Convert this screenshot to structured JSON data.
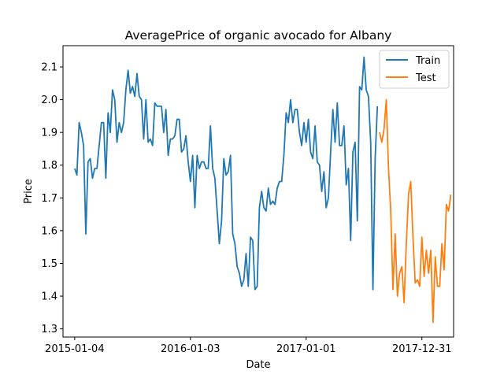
{
  "chart_data": {
    "type": "line",
    "title": "AveragePrice of organic avocado for Albany",
    "xlabel": "Date",
    "ylabel": "Price",
    "x_ticks": [
      "2015-01-04",
      "2016-01-03",
      "2017-01-01",
      "2017-12-31"
    ],
    "y_ticks": [
      "1.3",
      "1.4",
      "1.5",
      "1.6",
      "1.7",
      "1.8",
      "1.9",
      "2.0",
      "2.1"
    ],
    "ylim": [
      1.275,
      2.165
    ],
    "xlim_weeks": [
      -5.25,
      170.25
    ],
    "grid": false,
    "legend_position": "top-right",
    "series": [
      {
        "name": "Train",
        "color": "#1f77b4",
        "start": "2015-01-04",
        "step_days": 7,
        "values": [
          1.79,
          1.77,
          1.93,
          1.9,
          1.86,
          1.59,
          1.81,
          1.82,
          1.76,
          1.79,
          1.79,
          1.86,
          1.93,
          1.93,
          1.76,
          1.96,
          1.9,
          2.03,
          2.0,
          1.87,
          1.93,
          1.9,
          1.93,
          2.03,
          2.09,
          2.02,
          2.04,
          2.01,
          2.08,
          2.01,
          2.0,
          1.88,
          2.0,
          1.87,
          1.88,
          1.86,
          1.99,
          1.98,
          1.98,
          1.98,
          1.9,
          1.97,
          1.83,
          1.88,
          1.88,
          1.89,
          1.94,
          1.94,
          1.84,
          1.85,
          1.89,
          1.81,
          1.75,
          1.83,
          1.67,
          1.83,
          1.79,
          1.81,
          1.81,
          1.79,
          1.79,
          1.92,
          1.79,
          1.76,
          1.66,
          1.56,
          1.63,
          1.82,
          1.77,
          1.78,
          1.83,
          1.59,
          1.56,
          1.49,
          1.47,
          1.43,
          1.45,
          1.53,
          1.43,
          1.58,
          1.57,
          1.42,
          1.43,
          1.67,
          1.72,
          1.67,
          1.66,
          1.73,
          1.68,
          1.69,
          1.68,
          1.73,
          1.75,
          1.75,
          1.83,
          1.96,
          1.93,
          2.0,
          1.93,
          1.97,
          1.97,
          1.9,
          1.86,
          1.93,
          1.87,
          1.94,
          1.84,
          1.82,
          1.92,
          1.81,
          1.8,
          1.72,
          1.78,
          1.67,
          1.7,
          1.84,
          1.97,
          1.87,
          1.99,
          1.86,
          1.86,
          1.92,
          1.74,
          1.79,
          1.57,
          1.84,
          1.87,
          1.63,
          2.04,
          2.03,
          2.13,
          2.03,
          2.01,
          1.87,
          1.42,
          1.82,
          1.98
        ]
      },
      {
        "name": "Test",
        "color": "#ff7f0e",
        "start": "2017-08-20",
        "step_days": 7,
        "values": [
          1.9,
          1.87,
          1.91,
          2.0,
          1.79,
          1.66,
          1.42,
          1.59,
          1.4,
          1.47,
          1.49,
          1.38,
          1.56,
          1.71,
          1.75,
          1.58,
          1.44,
          1.45,
          1.43,
          1.58,
          1.46,
          1.54,
          1.47,
          1.54,
          1.32,
          1.52,
          1.43,
          1.43,
          1.56,
          1.48,
          1.68,
          1.66,
          1.71
        ]
      }
    ]
  }
}
